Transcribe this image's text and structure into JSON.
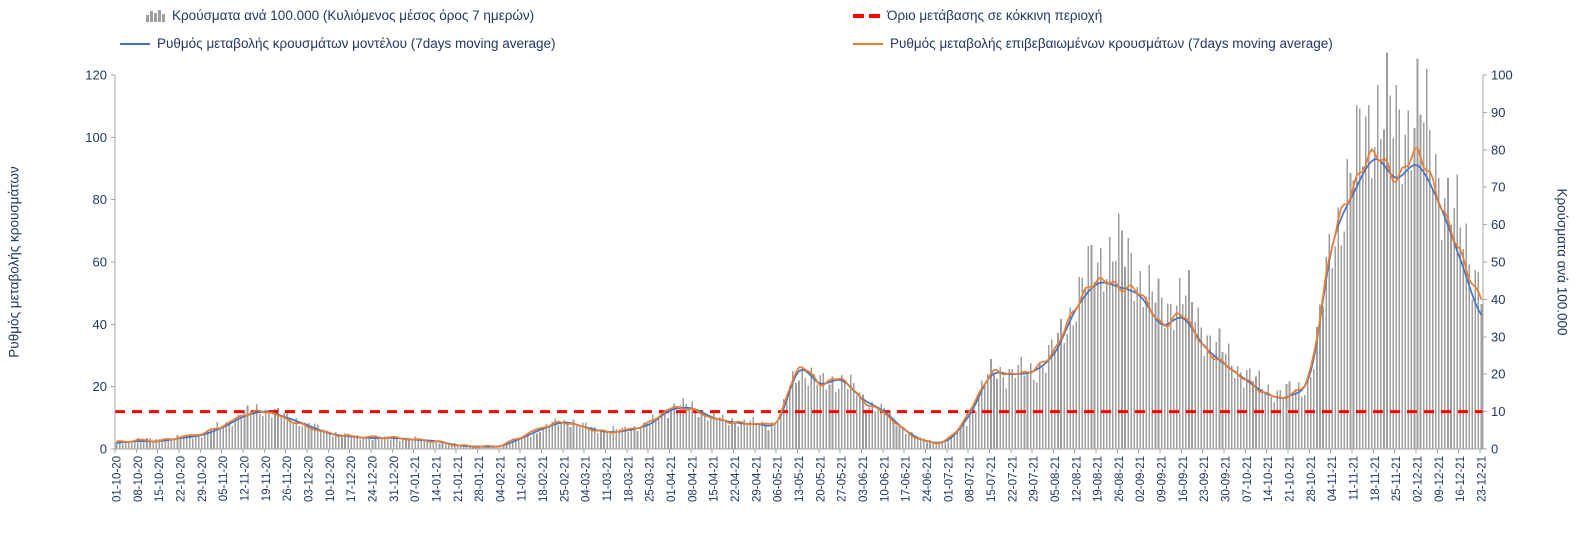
{
  "legend": {
    "bars": "Κρούσματα ανά 100.000 (Κυλιόμενος μέσος όρος 7 ημερών)",
    "threshold": "Όριο μετάβασης σε κόκκινη περιοχή",
    "model": "Ρυθμός μεταβολής κρουσμάτων μοντέλου (7days moving average)",
    "confirmed": "Ρυθμός μεταβολής επιβεβαιωμένων κρουσμάτων (7days moving average)"
  },
  "axes": {
    "left_title": "Ρυθμός μεταβολής κρουσμάτων",
    "right_title": "Κρούσματα ανά 100.000",
    "left_ticks": [
      0,
      20,
      40,
      60,
      80,
      100,
      120
    ],
    "right_ticks": [
      0,
      10,
      20,
      30,
      40,
      50,
      60,
      70,
      80,
      90,
      100
    ],
    "left_range": [
      0,
      120
    ],
    "right_range": [
      0,
      100
    ]
  },
  "colors": {
    "bars": "#9e9e9e",
    "model_line": "#4472c4",
    "confirmed_line": "#ed7d31",
    "threshold_line": "#ff0000",
    "text": "#1f3864",
    "axis": "#a6a6a6"
  },
  "chart_data": {
    "type": "bar+line",
    "note": "Daily COVID chart; series values estimated at each weekly x tick, daily bars oscillate around the 7-day average",
    "x_weekly": [
      "01-10-20",
      "08-10-20",
      "15-10-20",
      "22-10-20",
      "29-10-20",
      "05-11-20",
      "12-11-20",
      "19-11-20",
      "26-11-20",
      "03-12-20",
      "10-12-20",
      "17-12-20",
      "24-12-20",
      "31-12-20",
      "07-01-21",
      "14-01-21",
      "21-01-21",
      "28-01-21",
      "04-02-21",
      "11-02-21",
      "18-02-21",
      "25-02-21",
      "04-03-21",
      "11-03-21",
      "18-03-21",
      "25-03-21",
      "01-04-21",
      "08-04-21",
      "15-04-21",
      "22-04-21",
      "29-04-21",
      "06-05-21",
      "13-05-21",
      "20-05-21",
      "27-05-21",
      "03-06-21",
      "10-06-21",
      "17-06-21",
      "24-06-21",
      "01-07-21",
      "08-07-21",
      "15-07-21",
      "22-07-21",
      "29-07-21",
      "05-08-21",
      "12-08-21",
      "19-08-21",
      "26-08-21",
      "02-09-21",
      "09-09-21",
      "16-09-21",
      "23-09-21",
      "30-09-21",
      "07-10-21",
      "14-10-21",
      "21-10-21",
      "28-10-21",
      "04-11-21",
      "11-11-21",
      "18-11-21",
      "25-11-21",
      "02-12-21",
      "09-12-21",
      "16-12-21",
      "23-12-21"
    ],
    "series": [
      {
        "name": "Κρούσματα ανά 100.000 (Κυλιόμενος μέσος όρος 7 ημερών)",
        "type": "bar",
        "axis": "right",
        "values": [
          1.5,
          2.5,
          2.5,
          3,
          4,
          6.5,
          9.5,
          10.5,
          8.5,
          6.5,
          4.5,
          3.5,
          3,
          3,
          2.5,
          2,
          1,
          0.7,
          0.8,
          3,
          5.5,
          7.5,
          6,
          5,
          5.5,
          7,
          11,
          11,
          8.5,
          7.5,
          7,
          8,
          21,
          17.5,
          18.5,
          13.5,
          10,
          5,
          2.2,
          2.5,
          9,
          20,
          20.5,
          21,
          27,
          40,
          50,
          53,
          46,
          38,
          41,
          32,
          25,
          20,
          16,
          15.5,
          21,
          55,
          75,
          91,
          86,
          90,
          74,
          58,
          46
        ]
      },
      {
        "name": "Ρυθμός μεταβολής κρουσμάτων μοντέλου (7days moving average)",
        "type": "line",
        "axis": "left",
        "values": [
          2,
          2.5,
          2.5,
          3.5,
          4.5,
          7,
          10.5,
          12,
          10,
          7.5,
          5,
          4,
          3.5,
          3.5,
          3,
          2.5,
          1.2,
          0.8,
          1,
          3.5,
          6.5,
          8.5,
          7,
          5.5,
          6,
          8,
          12.5,
          13,
          10,
          8.5,
          8,
          9,
          25,
          21,
          22,
          16,
          12,
          6,
          2.5,
          3,
          11,
          23.5,
          24,
          25,
          31,
          45,
          53,
          52,
          49,
          40,
          42,
          33,
          27,
          22,
          17.5,
          17,
          25,
          65,
          82,
          93,
          87,
          91,
          79,
          61,
          43
        ]
      },
      {
        "name": "Ρυθμός μεταβολής επιβεβαιωμένων κρουσμάτων (7days moving average)",
        "type": "line",
        "axis": "left",
        "values": [
          2.2,
          2.8,
          2.6,
          3.8,
          5,
          7.5,
          11,
          12,
          9.5,
          7,
          5,
          4,
          3.8,
          3.6,
          3,
          2.4,
          1.2,
          0.8,
          1.2,
          4,
          7,
          8.5,
          6.8,
          5.5,
          6.2,
          8.5,
          13,
          12.5,
          9.8,
          8.5,
          8.2,
          9.5,
          26,
          21,
          22.5,
          15.5,
          11.5,
          5.8,
          2.4,
          3.2,
          12,
          24,
          24,
          25.5,
          32,
          46,
          54,
          52,
          50,
          40,
          43,
          32.5,
          27,
          22,
          17.5,
          17.2,
          26,
          66,
          84,
          95,
          87,
          95,
          80,
          63,
          48
        ]
      },
      {
        "name": "Όριο μετάβασης σε κόκκινη περιοχή",
        "type": "threshold",
        "axis": "right",
        "value": 10
      }
    ],
    "ylim_left": [
      0,
      120
    ],
    "ylim_right": [
      0,
      100
    ]
  }
}
